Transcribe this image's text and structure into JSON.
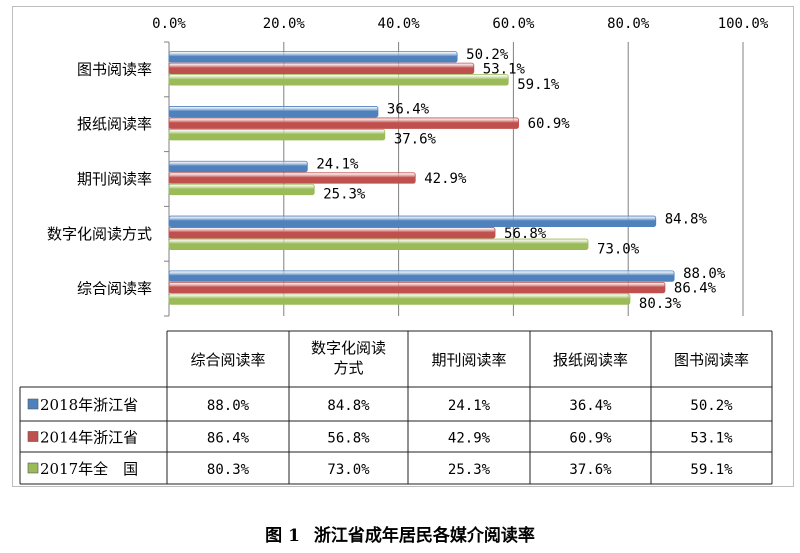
{
  "chart_data": {
    "type": "bar",
    "orientation": "horizontal",
    "categories": [
      "图书阅读率",
      "报纸阅读率",
      "期刊阅读率",
      "数字化阅读方式",
      "综合阅读率"
    ],
    "series": [
      {
        "name": "2018年浙江省",
        "color": "#4f81bd",
        "values": [
          50.2,
          36.4,
          24.1,
          84.8,
          88.0
        ]
      },
      {
        "name": "2014年浙江省",
        "color": "#c0504d",
        "values": [
          53.1,
          60.9,
          42.9,
          56.8,
          86.4
        ]
      },
      {
        "name": "2017年全　国",
        "color": "#9bbb59",
        "values": [
          59.1,
          37.6,
          25.3,
          73.0,
          80.3
        ]
      }
    ],
    "value_labels": {
      "2018年浙江省": [
        "50.2%",
        "36.4%",
        "24.1%",
        "84.8%",
        "88.0%"
      ],
      "2014年浙江省": [
        "53.1%",
        "60.9%",
        "42.9%",
        "56.8%",
        "86.4%"
      ],
      "2017年全　国": [
        "59.1%",
        "37.6%",
        "25.3%",
        "73.0%",
        "80.3%"
      ]
    },
    "xlim": [
      0,
      100
    ],
    "xticks": [
      0,
      20,
      40,
      60,
      80,
      100
    ],
    "xtick_labels": [
      "0.0%",
      "20.0%",
      "40.0%",
      "60.0%",
      "80.0%",
      "100.0%"
    ],
    "x_axis_position": "top",
    "grid": true,
    "data_table": {
      "columns": [
        "综合阅读率",
        "数字化阅读方式",
        "期刊阅读率",
        "报纸阅读率",
        "图书阅读率"
      ],
      "column_header_lines": [
        [
          "综合阅读率"
        ],
        [
          "数字化阅读",
          "方式"
        ],
        [
          "期刊阅读率"
        ],
        [
          "报纸阅读率"
        ],
        [
          "图书阅读率"
        ]
      ],
      "rows": [
        {
          "series": "2018年浙江省",
          "values": [
            "88.0%",
            "84.8%",
            "24.1%",
            "36.4%",
            "50.2%"
          ]
        },
        {
          "series": "2014年浙江省",
          "values": [
            "86.4%",
            "56.8%",
            "42.9%",
            "60.9%",
            "53.1%"
          ]
        },
        {
          "series": "2017年全　国",
          "values": [
            "80.3%",
            "73.0%",
            "25.3%",
            "37.6%",
            "59.1%"
          ]
        }
      ]
    }
  },
  "caption": {
    "number": "图 1",
    "text": "浙江省成年居民各媒介阅读率"
  }
}
